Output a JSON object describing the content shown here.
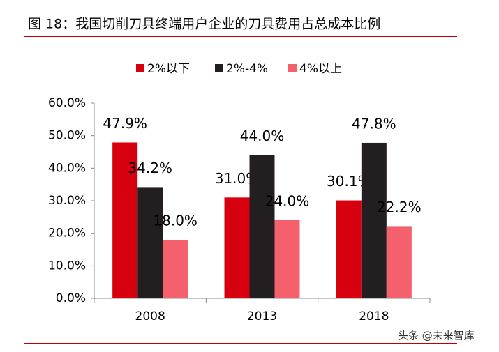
{
  "chart_data": {
    "type": "bar",
    "title": "图 18：我国切削刀具终端用户企业的刀具费用占总成本比例",
    "categories": [
      "2008",
      "2013",
      "2018"
    ],
    "series": [
      {
        "name": "2%以下",
        "color": "#d7000f",
        "values": [
          47.9,
          31.0,
          30.1
        ],
        "value_labels": [
          "47.9%",
          "31.0%",
          "30.1%"
        ]
      },
      {
        "name": "2%-4%",
        "color": "#231f20",
        "values": [
          34.2,
          44.0,
          47.8
        ],
        "value_labels": [
          "34.2%",
          "44.0%",
          "47.8%"
        ]
      },
      {
        "name": "4%以上",
        "color": "#f4606c",
        "values": [
          18.0,
          24.0,
          22.2
        ],
        "value_labels": [
          "18.0%",
          "24.0%",
          "22.2%"
        ]
      }
    ],
    "ylim": [
      0,
      60
    ],
    "yticks": [
      {
        "value": 0,
        "label": "0.0%"
      },
      {
        "value": 10,
        "label": "10.0%"
      },
      {
        "value": 20,
        "label": "20.0%"
      },
      {
        "value": 30,
        "label": "30.0%"
      },
      {
        "value": 40,
        "label": "40.0%"
      },
      {
        "value": 50,
        "label": "50.0%"
      },
      {
        "value": 60,
        "label": "60.0%"
      }
    ],
    "legend_position": "top",
    "watermark": "头条 @未来智库"
  }
}
